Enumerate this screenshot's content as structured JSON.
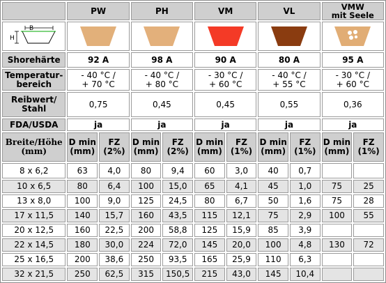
{
  "columns": [
    {
      "name": "PW",
      "lines": [
        "PW"
      ],
      "color": "#e2b07a",
      "dots": false
    },
    {
      "name": "PH",
      "lines": [
        "PH"
      ],
      "color": "#e3b07b",
      "dots": false
    },
    {
      "name": "VM",
      "lines": [
        "VM"
      ],
      "color": "#f43a26",
      "dots": false
    },
    {
      "name": "VL",
      "lines": [
        "VL"
      ],
      "color": "#8a3c10",
      "dots": false
    },
    {
      "name": "VMW",
      "lines": [
        "VMW",
        "mit Seele"
      ],
      "color": "#e1ad75",
      "dots": true
    }
  ],
  "diagram": {
    "b": "B",
    "h": "H"
  },
  "props": {
    "shore": {
      "label": "Shorehärte",
      "values": [
        "92 A",
        "98 A",
        "90 A",
        "80 A",
        "95 A"
      ]
    },
    "temp": {
      "label1": "Temperatur-",
      "label2": "bereich",
      "values": [
        [
          "- 40 °C /",
          "+ 70 °C"
        ],
        [
          "- 40 °C /",
          "+ 80 °C"
        ],
        [
          "- 30 °C /",
          "+ 60 °C"
        ],
        [
          "- 40 °C /",
          "+ 55 °C"
        ],
        [
          "- 30 °C /",
          "+ 60 °C"
        ]
      ]
    },
    "friction": {
      "label1": "Reibwert/",
      "label2": "Stahl",
      "values": [
        "0,75",
        "0,45",
        "0,45",
        "0,55",
        "0,36"
      ]
    },
    "fda": {
      "label": "FDA/USDA",
      "values": [
        "ja",
        "ja",
        "ja",
        "ja",
        "ja"
      ]
    }
  },
  "size_header": {
    "label1": "Breite/Höhe",
    "label2": "(mm)",
    "dmin1": "D min",
    "dmin2": "(mm)",
    "fz1": "FZ",
    "fz_pct": [
      "(2%)",
      "(2%)",
      "(1%)",
      "(1%)",
      "(1%)"
    ]
  },
  "rows": [
    {
      "size": "8 x 6,2",
      "cells": [
        "63",
        "4,0",
        "80",
        "9,4",
        "60",
        "3,0",
        "40",
        "0,7",
        "",
        ""
      ]
    },
    {
      "size": "10 x 6,5",
      "cells": [
        "80",
        "6,4",
        "100",
        "15,0",
        "65",
        "4,1",
        "45",
        "1,0",
        "75",
        "25"
      ]
    },
    {
      "size": "13 x 8,0",
      "cells": [
        "100",
        "9,0",
        "125",
        "24,5",
        "80",
        "6,7",
        "50",
        "1,6",
        "75",
        "28"
      ]
    },
    {
      "size": "17 x 11,5",
      "cells": [
        "140",
        "15,7",
        "160",
        "43,5",
        "115",
        "12,1",
        "75",
        "2,9",
        "100",
        "55"
      ]
    },
    {
      "size": "20 x 12,5",
      "cells": [
        "160",
        "22,5",
        "200",
        "58,8",
        "125",
        "15,9",
        "85",
        "3,9",
        "",
        ""
      ]
    },
    {
      "size": "22 x 14,5",
      "cells": [
        "180",
        "30,0",
        "224",
        "72,0",
        "145",
        "20,0",
        "100",
        "4,8",
        "130",
        "72"
      ]
    },
    {
      "size": "25 x 16,5",
      "cells": [
        "200",
        "38,6",
        "250",
        "93,5",
        "165",
        "25,9",
        "110",
        "6,3",
        "",
        ""
      ]
    },
    {
      "size": "32 x 21,5",
      "cells": [
        "250",
        "62,5",
        "315",
        "150,5",
        "215",
        "43,0",
        "145",
        "10,4",
        "",
        ""
      ]
    }
  ]
}
